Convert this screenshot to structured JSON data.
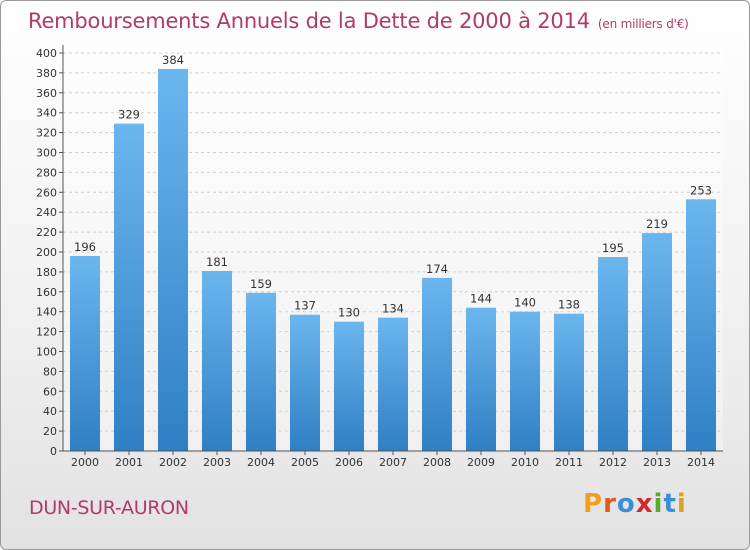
{
  "header": {
    "title": "Remboursements Annuels de la Dette de 2000 à 2014",
    "unit": "(en milliers d'€)"
  },
  "footer": {
    "town": "DUN-SUR-AURON",
    "logo": [
      "P",
      "r",
      "o",
      "x",
      "i",
      "t",
      "i"
    ]
  },
  "colors": {
    "title": "#b03a6a",
    "bar_top": "#6cb6ef",
    "bar_bottom": "#2f7fc4",
    "logo": [
      "#f0a020",
      "#e05a20",
      "#3a8fd8",
      "#d02a2a",
      "#5aaa30",
      "#3a8fd8",
      "#e0a020"
    ]
  },
  "chart_data": {
    "type": "bar",
    "title": "Remboursements Annuels de la Dette de 2000 à 2014",
    "xlabel": "",
    "ylabel": "",
    "categories": [
      "2000",
      "2001",
      "2002",
      "2003",
      "2004",
      "2005",
      "2006",
      "2007",
      "2008",
      "2009",
      "2010",
      "2011",
      "2012",
      "2013",
      "2014"
    ],
    "values": [
      196,
      329,
      384,
      181,
      159,
      137,
      130,
      134,
      174,
      144,
      140,
      138,
      195,
      219,
      253
    ],
    "ylim": [
      0,
      400
    ],
    "yticks": [
      0,
      20,
      40,
      60,
      80,
      100,
      120,
      140,
      160,
      180,
      200,
      220,
      240,
      260,
      280,
      300,
      320,
      340,
      360,
      380,
      400
    ],
    "grid": true
  }
}
